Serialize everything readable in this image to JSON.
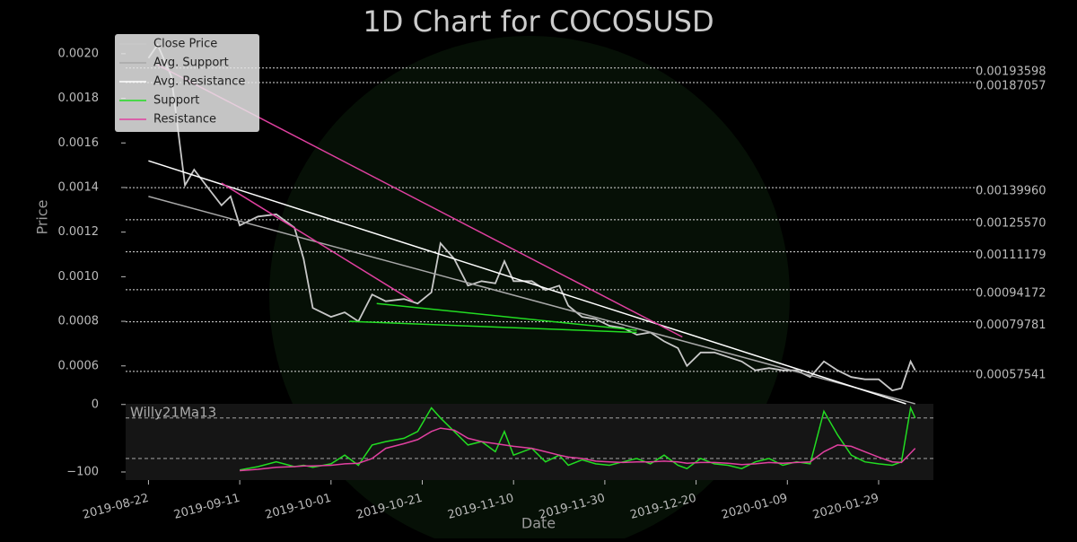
{
  "chart_data": [
    {
      "type": "line",
      "title": "1D Chart for COCOSUSD",
      "x_label": "Date",
      "y_label": "Price",
      "xlim": [
        "2019-08-17",
        "2020-02-10"
      ],
      "ylim": [
        0.00043,
        0.00208
      ],
      "xticks": [
        "2019-08-22",
        "2019-09-11",
        "2019-10-01",
        "2019-10-21",
        "2019-11-10",
        "2019-11-30",
        "2019-12-20",
        "2020-01-09",
        "2020-01-29"
      ],
      "yticks": [
        0.0006,
        0.0008,
        {
          "value": 0.001,
          "label": "0.0010"
        },
        0.0012,
        0.0014,
        0.0016,
        0.0018,
        {
          "value": 0.002,
          "label": "0.0020"
        }
      ],
      "legend": "upper left",
      "series": [
        {
          "name": "Close Price",
          "color": "#c8c8c8",
          "x": [
            "2019-08-22",
            "2019-08-24",
            "2019-08-27",
            "2019-08-30",
            "2019-09-01",
            "2019-09-04",
            "2019-09-07",
            "2019-09-09",
            "2019-09-11",
            "2019-09-15",
            "2019-09-19",
            "2019-09-23",
            "2019-09-25",
            "2019-09-27",
            "2019-10-01",
            "2019-10-04",
            "2019-10-07",
            "2019-10-10",
            "2019-10-13",
            "2019-10-17",
            "2019-10-20",
            "2019-10-23",
            "2019-10-25",
            "2019-10-28",
            "2019-10-31",
            "2019-11-03",
            "2019-11-06",
            "2019-11-08",
            "2019-11-10",
            "2019-11-14",
            "2019-11-17",
            "2019-11-20",
            "2019-11-22",
            "2019-11-25",
            "2019-11-28",
            "2019-12-01",
            "2019-12-04",
            "2019-12-07",
            "2019-12-10",
            "2019-12-13",
            "2019-12-16",
            "2019-12-18",
            "2019-12-21",
            "2019-12-24",
            "2019-12-27",
            "2019-12-30",
            "2020-01-02",
            "2020-01-05",
            "2020-01-08",
            "2020-01-11",
            "2020-01-14",
            "2020-01-17",
            "2020-01-20",
            "2020-01-23",
            "2020-01-26",
            "2020-01-29",
            "2020-02-01",
            "2020-02-03",
            "2020-02-05",
            "2020-02-06"
          ],
          "values": [
            0.00198,
            0.00204,
            0.0019,
            0.00141,
            0.00148,
            0.0014,
            0.00132,
            0.00136,
            0.00123,
            0.00127,
            0.00128,
            0.00122,
            0.00108,
            0.00086,
            0.00082,
            0.00084,
            0.0008,
            0.00092,
            0.00089,
            0.0009,
            0.00088,
            0.00093,
            0.00115,
            0.00108,
            0.00096,
            0.00098,
            0.00097,
            0.00107,
            0.00098,
            0.00098,
            0.00094,
            0.00096,
            0.00087,
            0.00082,
            0.00081,
            0.00078,
            0.00077,
            0.00074,
            0.00075,
            0.00071,
            0.00068,
            0.0006,
            0.00066,
            0.00066,
            0.00064,
            0.00062,
            0.00058,
            0.00059,
            0.00058,
            0.00058,
            0.00055,
            0.00062,
            0.00058,
            0.00055,
            0.00054,
            0.00054,
            0.00049,
            0.0005,
            0.00062,
            0.00058
          ]
        },
        {
          "name": "Avg. Support",
          "color": "#a8a8a8",
          "x": [
            "2019-08-22",
            "2020-02-06"
          ],
          "values": [
            0.00136,
            0.00043
          ]
        },
        {
          "name": "Avg. Resistance",
          "color": "#ffffff",
          "x": [
            "2019-08-22",
            "2020-02-04"
          ],
          "values": [
            0.00152,
            0.00043
          ]
        },
        {
          "name": "Support",
          "color": "#22dd22",
          "x": [
            "2019-10-11",
            "2019-12-07"
          ],
          "values": [
            0.00088,
            0.00076
          ]
        },
        {
          "color": "#22dd22",
          "x": [
            "2019-10-05",
            "2019-12-07"
          ],
          "values": [
            0.0008,
            0.00075
          ]
        },
        {
          "name": "Resistance",
          "color": "#e040a0",
          "x": [
            "2019-08-24",
            "2019-12-17"
          ],
          "values": [
            0.00195,
            0.00073
          ]
        },
        {
          "color": "#e040a0",
          "x": [
            "2019-09-07",
            "2019-10-19"
          ],
          "values": [
            0.00142,
            0.00089
          ]
        }
      ],
      "levels": [
        {
          "value": 0.00193598,
          "label": "0.00193598"
        },
        {
          "value": 0.00187057,
          "label": "0.00187057"
        },
        {
          "value": 0.0013996,
          "label": "0.00139960"
        },
        {
          "value": 0.0012557,
          "label": "0.00125570"
        },
        {
          "value": 0.00111179,
          "label": "0.00111179"
        },
        {
          "value": 0.00094172,
          "label": "0.00094172"
        },
        {
          "value": 0.00079781,
          "label": "0.00079781"
        },
        {
          "value": 0.00057541,
          "label": "0.00057541"
        }
      ]
    },
    {
      "type": "line",
      "title": "Willy21Ma13",
      "xlim": [
        "2019-08-17",
        "2020-02-10"
      ],
      "ylim": [
        -112,
        1
      ],
      "yticks": [
        0,
        {
          "value": -100,
          "label": "−100"
        }
      ],
      "hlines": [
        -20,
        -80
      ],
      "series": [
        {
          "color": "#22dd22",
          "x": [
            "2019-08-22",
            "2019-08-24",
            "2019-08-27",
            "2019-08-30",
            "2019-09-01",
            "2019-09-04",
            "2019-09-07",
            "2019-09-09",
            "2019-09-11",
            "2019-09-15",
            "2019-09-19",
            "2019-09-23",
            "2019-09-25",
            "2019-09-27",
            "2019-10-01",
            "2019-10-04",
            "2019-10-07",
            "2019-10-10",
            "2019-10-13",
            "2019-10-17",
            "2019-10-20",
            "2019-10-23",
            "2019-10-25",
            "2019-10-28",
            "2019-10-31",
            "2019-11-03",
            "2019-11-06",
            "2019-11-08",
            "2019-11-10",
            "2019-11-14",
            "2019-11-17",
            "2019-11-20",
            "2019-11-22",
            "2019-11-25",
            "2019-11-28",
            "2019-12-01",
            "2019-12-04",
            "2019-12-07",
            "2019-12-10",
            "2019-12-13",
            "2019-12-16",
            "2019-12-18",
            "2019-12-21",
            "2019-12-24",
            "2019-12-27",
            "2019-12-30",
            "2020-01-02",
            "2020-01-05",
            "2020-01-08",
            "2020-01-11",
            "2020-01-14",
            "2020-01-17",
            "2020-01-20",
            "2020-01-23",
            "2020-01-26",
            "2020-01-29",
            "2020-02-01",
            "2020-02-03",
            "2020-02-05",
            "2020-02-06"
          ],
          "values": [
            null,
            null,
            null,
            null,
            null,
            null,
            null,
            null,
            -97,
            -92,
            -85,
            -92,
            -90,
            -93,
            -88,
            -75,
            -90,
            -60,
            -55,
            -50,
            -40,
            -5,
            -20,
            -40,
            -60,
            -55,
            -70,
            -40,
            -75,
            -65,
            -85,
            -75,
            -90,
            -82,
            -88,
            -90,
            -85,
            -80,
            -88,
            -75,
            -90,
            -95,
            -80,
            -88,
            -90,
            -95,
            -85,
            -80,
            -90,
            -85,
            -88,
            -10,
            -45,
            -75,
            -85,
            -88,
            -90,
            -85,
            -5,
            -20
          ]
        },
        {
          "color": "#e040a0",
          "x": [
            "2019-08-22",
            "2019-08-24",
            "2019-08-27",
            "2019-08-30",
            "2019-09-01",
            "2019-09-04",
            "2019-09-07",
            "2019-09-09",
            "2019-09-11",
            "2019-09-15",
            "2019-09-19",
            "2019-09-23",
            "2019-09-25",
            "2019-09-27",
            "2019-10-01",
            "2019-10-04",
            "2019-10-07",
            "2019-10-10",
            "2019-10-13",
            "2019-10-17",
            "2019-10-20",
            "2019-10-23",
            "2019-10-25",
            "2019-10-28",
            "2019-10-31",
            "2019-11-03",
            "2019-11-06",
            "2019-11-08",
            "2019-11-10",
            "2019-11-14",
            "2019-11-17",
            "2019-11-20",
            "2019-11-22",
            "2019-11-25",
            "2019-11-28",
            "2019-12-01",
            "2019-12-04",
            "2019-12-07",
            "2019-12-10",
            "2019-12-13",
            "2019-12-16",
            "2019-12-18",
            "2019-12-21",
            "2019-12-24",
            "2019-12-27",
            "2019-12-30",
            "2020-01-02",
            "2020-01-05",
            "2020-01-08",
            "2020-01-11",
            "2020-01-14",
            "2020-01-17",
            "2020-01-20",
            "2020-01-23",
            "2020-01-26",
            "2020-01-29",
            "2020-02-01",
            "2020-02-03",
            "2020-02-05",
            "2020-02-06"
          ],
          "values": [
            null,
            null,
            null,
            null,
            null,
            null,
            null,
            null,
            -98,
            -96,
            -93,
            -92,
            -91,
            -91,
            -90,
            -88,
            -87,
            -80,
            -65,
            -58,
            -52,
            -40,
            -35,
            -38,
            -50,
            -55,
            -58,
            -60,
            -62,
            -65,
            -70,
            -75,
            -78,
            -80,
            -84,
            -85,
            -86,
            -85,
            -85,
            -84,
            -85,
            -87,
            -86,
            -86,
            -87,
            -89,
            -88,
            -86,
            -87,
            -86,
            -85,
            -70,
            -60,
            -62,
            -70,
            -78,
            -85,
            -86,
            -72,
            -65
          ]
        }
      ]
    }
  ]
}
